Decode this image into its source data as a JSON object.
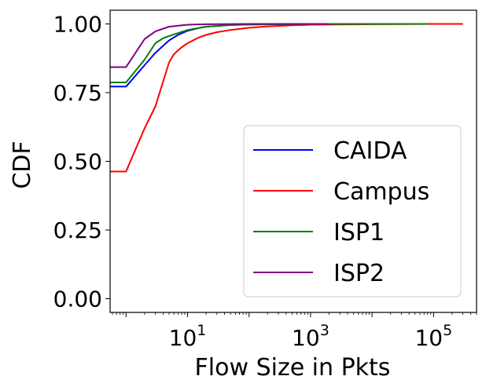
{
  "chart_data": {
    "type": "line",
    "title": "",
    "xlabel": "Flow Size in Pkts",
    "ylabel": "CDF",
    "x_scale": "log",
    "xlim": [
      0.55,
      500000
    ],
    "ylim": [
      -0.05,
      1.05
    ],
    "grid": false,
    "legend_placement": "lower right",
    "x_ticks": [
      {
        "value": 10,
        "base": "10",
        "exp": "1"
      },
      {
        "value": 1000,
        "base": "10",
        "exp": "3"
      },
      {
        "value": 100000,
        "base": "10",
        "exp": "5"
      }
    ],
    "y_ticks": [
      {
        "value": 0.0,
        "label": "0.00"
      },
      {
        "value": 0.25,
        "label": "0.25"
      },
      {
        "value": 0.5,
        "label": "0.50"
      },
      {
        "value": 0.75,
        "label": "0.75"
      },
      {
        "value": 1.0,
        "label": "1.00"
      }
    ],
    "series": [
      {
        "name": "CAIDA",
        "color": "#0000ff",
        "points": [
          [
            0.55,
            0.772
          ],
          [
            1,
            0.772
          ],
          [
            2,
            0.85
          ],
          [
            3,
            0.895
          ],
          [
            5,
            0.94
          ],
          [
            7,
            0.96
          ],
          [
            10,
            0.975
          ],
          [
            15,
            0.985
          ],
          [
            20,
            0.99
          ],
          [
            50,
            0.996
          ],
          [
            100,
            0.998
          ],
          [
            1000,
            1.0
          ],
          [
            100000,
            1.0
          ]
        ]
      },
      {
        "name": "Campus",
        "color": "#ff0000",
        "points": [
          [
            0.55,
            0.463
          ],
          [
            1,
            0.463
          ],
          [
            2,
            0.62
          ],
          [
            3,
            0.7
          ],
          [
            4,
            0.79
          ],
          [
            5,
            0.86
          ],
          [
            6,
            0.89
          ],
          [
            8,
            0.915
          ],
          [
            10,
            0.93
          ],
          [
            15,
            0.95
          ],
          [
            20,
            0.96
          ],
          [
            30,
            0.97
          ],
          [
            50,
            0.978
          ],
          [
            100,
            0.986
          ],
          [
            200,
            0.991
          ],
          [
            500,
            0.995
          ],
          [
            1000,
            0.997
          ],
          [
            10000,
            0.999
          ],
          [
            100000,
            1.0
          ],
          [
            300000,
            1.0
          ]
        ]
      },
      {
        "name": "ISP1",
        "color": "#008000",
        "points": [
          [
            0.55,
            0.787
          ],
          [
            1,
            0.787
          ],
          [
            2,
            0.87
          ],
          [
            3,
            0.93
          ],
          [
            4,
            0.948
          ],
          [
            6,
            0.962
          ],
          [
            10,
            0.978
          ],
          [
            20,
            0.99
          ],
          [
            50,
            0.996
          ],
          [
            100,
            0.998
          ],
          [
            1000,
            1.0
          ],
          [
            80000,
            1.0
          ]
        ]
      },
      {
        "name": "ISP2",
        "color": "#800080",
        "points": [
          [
            0.55,
            0.843
          ],
          [
            1,
            0.843
          ],
          [
            2,
            0.945
          ],
          [
            3,
            0.973
          ],
          [
            5,
            0.99
          ],
          [
            10,
            0.997
          ],
          [
            20,
            0.999
          ],
          [
            100,
            1.0
          ],
          [
            2000,
            1.0
          ]
        ]
      }
    ]
  }
}
